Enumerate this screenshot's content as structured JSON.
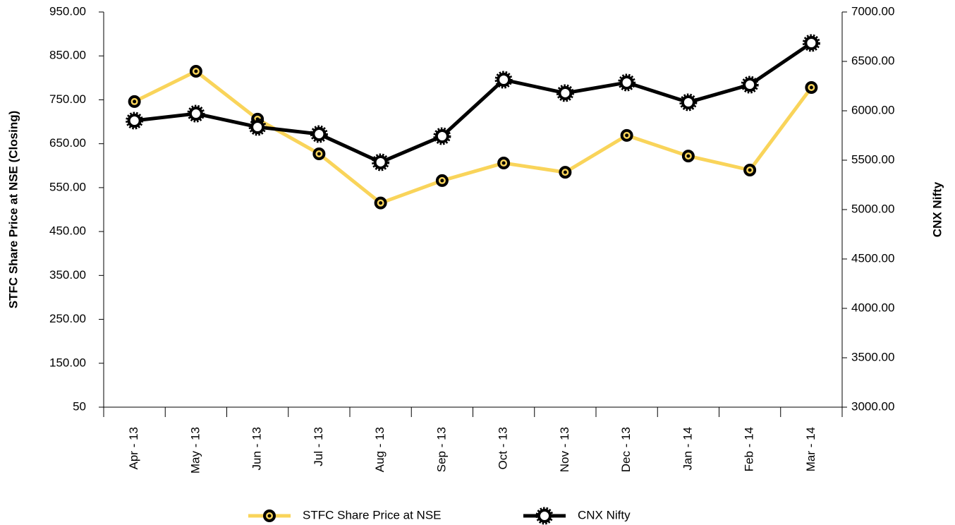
{
  "chart_data": {
    "type": "line",
    "categories": [
      "Apr - 13",
      "May - 13",
      "Jun - 13",
      "Jul - 13",
      "Aug - 13",
      "Sep - 13",
      "Oct - 13",
      "Nov - 13",
      "Dec - 13",
      "Jan - 14",
      "Feb - 14",
      "Mar - 14"
    ],
    "y_label": "STFC Share Price at NSE (Closing)",
    "y2_label": "CNX Nifty",
    "ylim": [
      50,
      950
    ],
    "yticks": [
      50,
      {
        "value": 150,
        "label": "150.00"
      },
      {
        "value": 250,
        "label": "250.00"
      },
      {
        "value": 350,
        "label": "350.00"
      },
      {
        "value": 450,
        "label": "450.00"
      },
      {
        "value": 550,
        "label": "550.00"
      },
      {
        "value": 650,
        "label": "650.00"
      },
      {
        "value": 750,
        "label": "750.00"
      },
      {
        "value": 850,
        "label": "850.00"
      },
      {
        "value": 950,
        "label": "950.00"
      }
    ],
    "y2lim": [
      3000,
      7000
    ],
    "y2ticks": [
      {
        "value": 3000,
        "label": "3000.00"
      },
      {
        "value": 3500,
        "label": "3500.00"
      },
      {
        "value": 4000,
        "label": "4000.00"
      },
      {
        "value": 4500,
        "label": "4500.00"
      },
      {
        "value": 5000,
        "label": "5000.00"
      },
      {
        "value": 5500,
        "label": "5500.00"
      },
      {
        "value": 6000,
        "label": "6000.00"
      },
      {
        "value": 6500,
        "label": "6500.00"
      },
      {
        "value": 7000,
        "label": "7000.00"
      }
    ],
    "grid": false,
    "legend": "bottom",
    "series": [
      {
        "name": "STFC Share Price at NSE",
        "color": "#f9d45a",
        "values": [
          746,
          815,
          706,
          627,
          515,
          566,
          606,
          585,
          669,
          622,
          590,
          778
        ]
      },
      {
        "name": "CNX Nifty",
        "color": "#000000",
        "axis": "y2",
        "values": [
          5900,
          5971,
          5836,
          5764,
          5479,
          5743,
          6314,
          6179,
          6286,
          6086,
          6264,
          6686
        ]
      }
    ]
  }
}
